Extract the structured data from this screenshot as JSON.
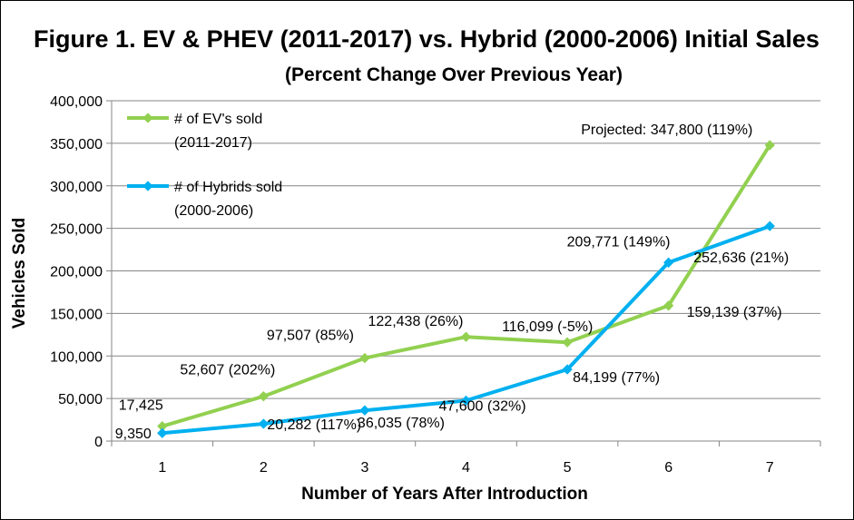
{
  "chart_data": {
    "type": "line",
    "title": "Figure 1. EV & PHEV (2011-2017) vs. Hybrid (2000-2006) Initial Sales",
    "subtitle": "(Percent Change Over Previous Year)",
    "xlabel": "Number of Years After Introduction",
    "ylabel": "Vehicles Sold",
    "x": [
      1,
      2,
      3,
      4,
      5,
      6,
      7
    ],
    "x_tick_labels": [
      "1",
      "2",
      "3",
      "4",
      "5",
      "6",
      "7"
    ],
    "ylim": [
      0,
      400000
    ],
    "y_ticks": [
      0,
      50000,
      100000,
      150000,
      200000,
      250000,
      300000,
      350000,
      400000
    ],
    "y_tick_labels": [
      "0",
      "50,000",
      "100,000",
      "150,000",
      "200,000",
      "250,000",
      "300,000",
      "350,000",
      "400,000"
    ],
    "grid": "horizontal",
    "legend_placement": "top-left",
    "series": [
      {
        "name_line1": "# of EV's sold",
        "name_line2": "(2011-2017)",
        "color": "#92D050",
        "values": [
          17425,
          52607,
          97507,
          122438,
          116099,
          159139,
          347800
        ],
        "labels": [
          "17,425",
          "52,607 (202%)",
          "97,507 (85%)",
          "122,438 (26%)",
          "116,099 (-5%)",
          "159,139 (37%)",
          "Projected: 347,800 (119%)"
        ]
      },
      {
        "name_line1": "# of Hybrids sold",
        "name_line2": "(2000-2006)",
        "color": "#00B0F0",
        "values": [
          9350,
          20282,
          36035,
          47600,
          84199,
          209771,
          252636
        ],
        "labels": [
          "9,350",
          "20,282 (117%)",
          "36,035 (78%)",
          "47,600 (32%)",
          "84,199 (77%)",
          "209,771 (149%)",
          "252,636 (21%)"
        ]
      }
    ]
  }
}
